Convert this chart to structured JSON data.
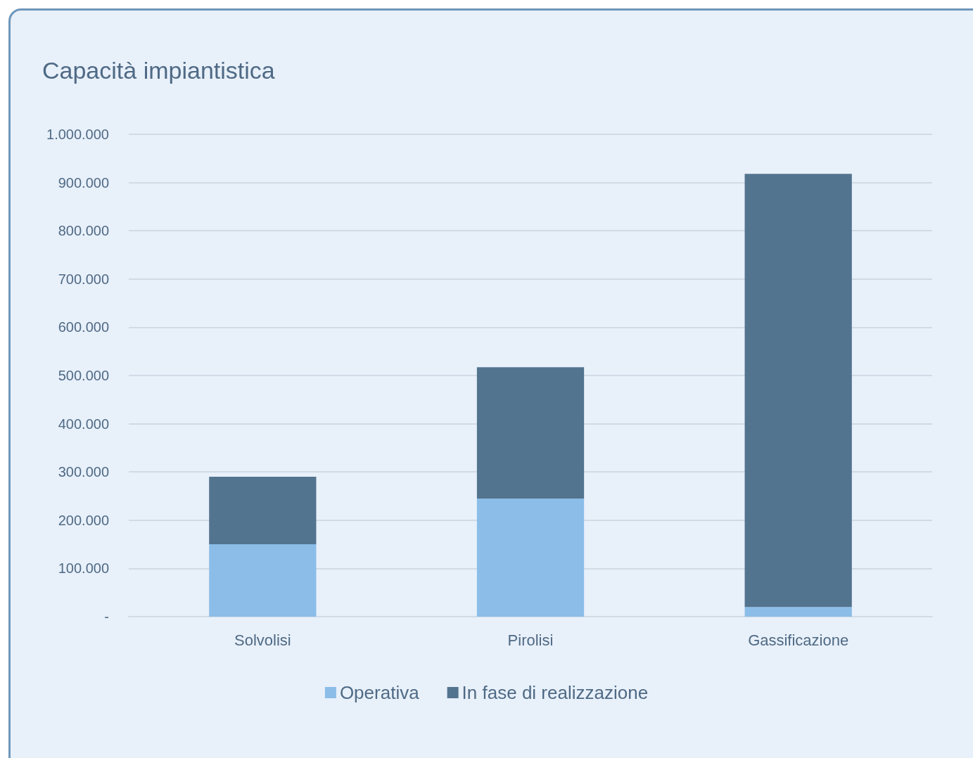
{
  "chart_data": {
    "type": "bar",
    "title": "Capacità impiantistica",
    "categories": [
      "Solvolisi",
      "Pirolisi",
      "Gassificazione"
    ],
    "series": [
      {
        "name": "Operativa",
        "color": "#8bbde8",
        "values": [
          150000,
          245000,
          20000
        ]
      },
      {
        "name": "In fase di realizzazione",
        "color": "#53748f",
        "values": [
          140000,
          272000,
          898000
        ]
      }
    ],
    "stacked": true,
    "ylim": [
      0,
      1000000
    ],
    "yticks": [
      {
        "value": 0,
        "label": "-"
      },
      {
        "value": 100000,
        "label": "100.000"
      },
      {
        "value": 200000,
        "label": "200.000"
      },
      {
        "value": 300000,
        "label": "300.000"
      },
      {
        "value": 400000,
        "label": "400.000"
      },
      {
        "value": 500000,
        "label": "500.000"
      },
      {
        "value": 600000,
        "label": "600.000"
      },
      {
        "value": 700000,
        "label": "700.000"
      },
      {
        "value": 800000,
        "label": "800.000"
      },
      {
        "value": 900000,
        "label": "900.000"
      },
      {
        "value": 1000000,
        "label": "1.000.000"
      }
    ],
    "grid": "y",
    "legend": "bottom"
  }
}
